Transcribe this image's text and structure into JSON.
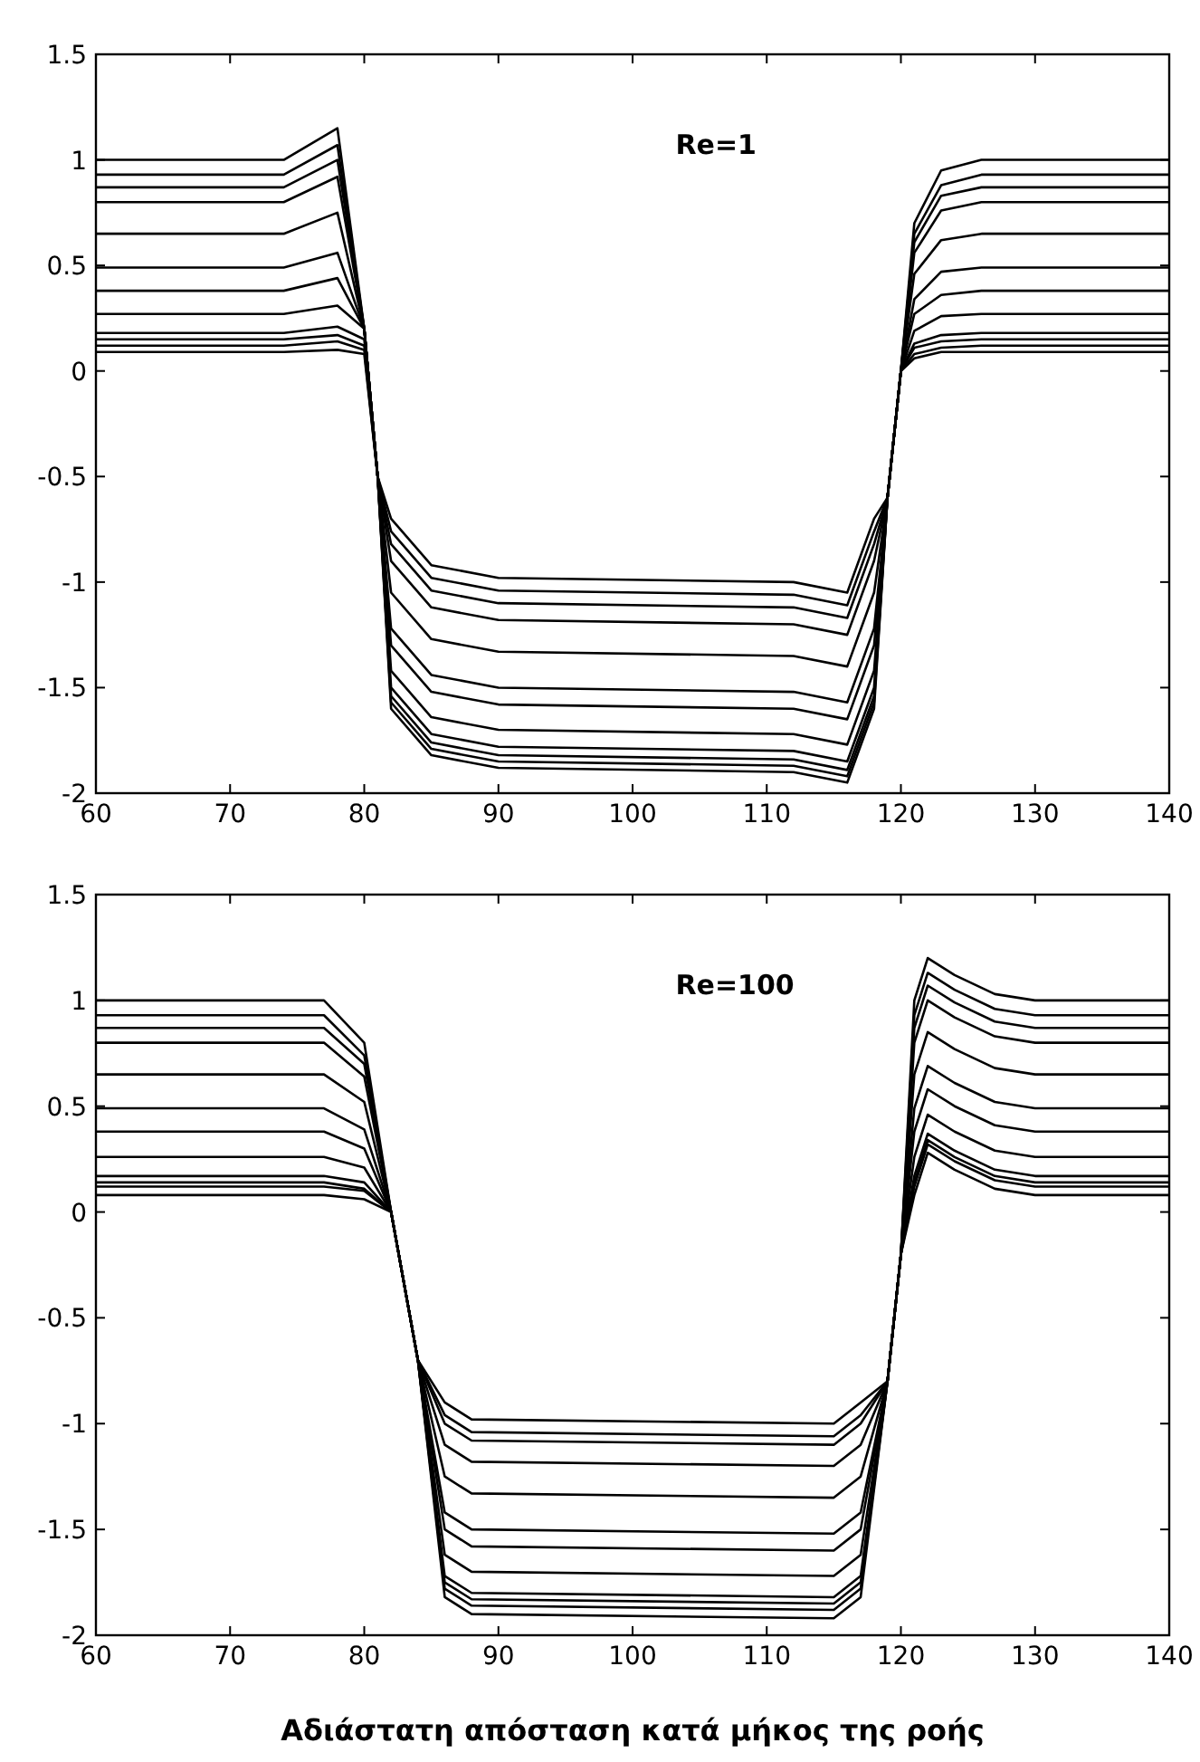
{
  "chart_data": [
    {
      "type": "line",
      "annotations": [
        "Re=1"
      ],
      "xlim": [
        60,
        140
      ],
      "ylim": [
        -2,
        1.5
      ],
      "xticks": [
        60,
        70,
        80,
        90,
        100,
        110,
        120,
        130,
        140
      ],
      "yticks": [
        -2,
        -1.5,
        -1,
        -0.5,
        0,
        0.5,
        1,
        1.5
      ],
      "x": [
        60,
        74,
        78,
        80,
        81,
        82,
        85,
        90,
        112,
        116,
        118,
        119,
        120,
        121,
        123,
        126,
        140
      ],
      "series": [
        {
          "color": "#000000",
          "values": [
            1,
            1,
            1.15,
            0.2,
            -0.5,
            -0.7,
            -0.92,
            -0.98,
            -1,
            -1.05,
            -0.7,
            -0.6,
            0,
            0.7,
            0.95,
            1,
            1
          ]
        },
        {
          "color": "#000000",
          "values": [
            0.93,
            0.93,
            1.07,
            0.2,
            -0.5,
            -0.76,
            -0.98,
            -1.04,
            -1.06,
            -1.11,
            -0.76,
            -0.6,
            0,
            0.65,
            0.88,
            0.93,
            0.93
          ]
        },
        {
          "color": "#000000",
          "values": [
            0.87,
            0.87,
            1,
            0.2,
            -0.5,
            -0.82,
            -1.04,
            -1.1,
            -1.12,
            -1.17,
            -0.82,
            -0.6,
            0,
            0.61,
            0.83,
            0.87,
            0.87
          ]
        },
        {
          "color": "#000000",
          "values": [
            0.8,
            0.8,
            0.92,
            0.2,
            -0.5,
            -0.9,
            -1.12,
            -1.18,
            -1.2,
            -1.25,
            -0.9,
            -0.6,
            0,
            0.56,
            0.76,
            0.8,
            0.8
          ]
        },
        {
          "color": "#000000",
          "values": [
            0.65,
            0.65,
            0.75,
            0.2,
            -0.5,
            -1.05,
            -1.27,
            -1.33,
            -1.35,
            -1.4,
            -1.05,
            -0.6,
            0,
            0.46,
            0.62,
            0.65,
            0.65
          ]
        },
        {
          "color": "#000000",
          "values": [
            0.49,
            0.49,
            0.56,
            0.2,
            -0.5,
            -1.22,
            -1.44,
            -1.5,
            -1.52,
            -1.57,
            -1.22,
            -0.6,
            0,
            0.34,
            0.47,
            0.49,
            0.49
          ]
        },
        {
          "color": "#000000",
          "values": [
            0.38,
            0.38,
            0.44,
            0.2,
            -0.5,
            -1.3,
            -1.52,
            -1.58,
            -1.6,
            -1.65,
            -1.3,
            -0.6,
            0,
            0.27,
            0.36,
            0.38,
            0.38
          ]
        },
        {
          "color": "#000000",
          "values": [
            0.27,
            0.27,
            0.31,
            0.2,
            -0.5,
            -1.42,
            -1.64,
            -1.7,
            -1.72,
            -1.77,
            -1.42,
            -0.6,
            0,
            0.19,
            0.26,
            0.27,
            0.27
          ]
        },
        {
          "color": "#000000",
          "values": [
            0.18,
            0.18,
            0.21,
            0.15,
            -0.5,
            -1.5,
            -1.72,
            -1.78,
            -1.8,
            -1.85,
            -1.5,
            -0.6,
            0,
            0.13,
            0.17,
            0.18,
            0.18
          ]
        },
        {
          "color": "#000000",
          "values": [
            0.15,
            0.15,
            0.17,
            0.12,
            -0.5,
            -1.54,
            -1.76,
            -1.82,
            -1.84,
            -1.89,
            -1.54,
            -0.6,
            0,
            0.11,
            0.14,
            0.15,
            0.15
          ]
        },
        {
          "color": "#000000",
          "values": [
            0.12,
            0.12,
            0.14,
            0.1,
            -0.5,
            -1.57,
            -1.79,
            -1.85,
            -1.87,
            -1.92,
            -1.57,
            -0.6,
            0,
            0.08,
            0.11,
            0.12,
            0.12
          ]
        },
        {
          "color": "#000000",
          "values": [
            0.09,
            0.09,
            0.1,
            0.08,
            -0.5,
            -1.6,
            -1.82,
            -1.88,
            -1.9,
            -1.95,
            -1.6,
            -0.6,
            0,
            0.06,
            0.09,
            0.09,
            0.09
          ]
        }
      ]
    },
    {
      "type": "line",
      "annotations": [
        "Re=100"
      ],
      "xlabel": "Αδιάστατη απόσταση κατά μήκος της ροής",
      "xlim": [
        60,
        140
      ],
      "ylim": [
        -2,
        1.5
      ],
      "xticks": [
        60,
        70,
        80,
        90,
        100,
        110,
        120,
        130,
        140
      ],
      "yticks": [
        -2,
        -1.5,
        -1,
        -0.5,
        0,
        0.5,
        1,
        1.5
      ],
      "x": [
        60,
        77,
        80,
        82,
        84,
        86,
        88,
        115,
        117,
        119,
        120,
        121,
        122,
        124,
        127,
        130,
        140
      ],
      "series": [
        {
          "color": "#000000",
          "values": [
            1,
            1,
            0.8,
            0,
            -0.7,
            -0.9,
            -0.98,
            -1,
            -0.9,
            -0.8,
            -0.2,
            1,
            1.2,
            1.12,
            1.03,
            1,
            1
          ]
        },
        {
          "color": "#000000",
          "values": [
            0.93,
            0.93,
            0.74,
            0,
            -0.7,
            -0.96,
            -1.04,
            -1.06,
            -0.96,
            -0.8,
            -0.2,
            0.93,
            1.13,
            1.05,
            0.96,
            0.93,
            0.93
          ]
        },
        {
          "color": "#000000",
          "values": [
            0.87,
            0.87,
            0.7,
            0,
            -0.7,
            -1,
            -1.08,
            -1.1,
            -1,
            -0.8,
            -0.2,
            0.87,
            1.07,
            0.99,
            0.9,
            0.87,
            0.87
          ]
        },
        {
          "color": "#000000",
          "values": [
            0.8,
            0.8,
            0.64,
            0,
            -0.7,
            -1.1,
            -1.18,
            -1.2,
            -1.1,
            -0.8,
            -0.2,
            0.8,
            1,
            0.92,
            0.83,
            0.8,
            0.8
          ]
        },
        {
          "color": "#000000",
          "values": [
            0.65,
            0.65,
            0.52,
            0,
            -0.7,
            -1.25,
            -1.33,
            -1.35,
            -1.25,
            -0.8,
            -0.2,
            0.65,
            0.85,
            0.77,
            0.68,
            0.65,
            0.65
          ]
        },
        {
          "color": "#000000",
          "values": [
            0.49,
            0.49,
            0.39,
            0,
            -0.7,
            -1.42,
            -1.5,
            -1.52,
            -1.42,
            -0.8,
            -0.2,
            0.49,
            0.69,
            0.61,
            0.52,
            0.49,
            0.49
          ]
        },
        {
          "color": "#000000",
          "values": [
            0.38,
            0.38,
            0.3,
            0,
            -0.7,
            -1.5,
            -1.58,
            -1.6,
            -1.5,
            -0.8,
            -0.2,
            0.38,
            0.58,
            0.5,
            0.41,
            0.38,
            0.38
          ]
        },
        {
          "color": "#000000",
          "values": [
            0.26,
            0.26,
            0.21,
            0,
            -0.7,
            -1.62,
            -1.7,
            -1.72,
            -1.62,
            -0.8,
            -0.2,
            0.26,
            0.46,
            0.38,
            0.29,
            0.26,
            0.26
          ]
        },
        {
          "color": "#000000",
          "values": [
            0.17,
            0.17,
            0.14,
            0,
            -0.7,
            -1.72,
            -1.8,
            -1.82,
            -1.72,
            -0.8,
            -0.2,
            0.17,
            0.37,
            0.29,
            0.2,
            0.17,
            0.17
          ]
        },
        {
          "color": "#000000",
          "values": [
            0.14,
            0.14,
            0.11,
            0,
            -0.7,
            -1.75,
            -1.83,
            -1.85,
            -1.75,
            -0.8,
            -0.2,
            0.14,
            0.34,
            0.26,
            0.17,
            0.14,
            0.14
          ]
        },
        {
          "color": "#000000",
          "values": [
            0.12,
            0.12,
            0.1,
            0,
            -0.7,
            -1.78,
            -1.86,
            -1.88,
            -1.78,
            -0.8,
            -0.2,
            0.12,
            0.32,
            0.24,
            0.15,
            0.12,
            0.12
          ]
        },
        {
          "color": "#000000",
          "values": [
            0.08,
            0.08,
            0.06,
            0,
            -0.7,
            -1.82,
            -1.9,
            -1.92,
            -1.82,
            -0.8,
            -0.2,
            0.08,
            0.28,
            0.2,
            0.11,
            0.08,
            0.08
          ]
        }
      ]
    }
  ]
}
